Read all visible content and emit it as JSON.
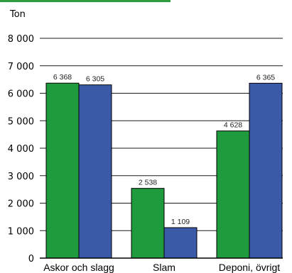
{
  "chart_data": {
    "type": "bar",
    "ylabel": "Ton",
    "ylim": [
      0,
      8000
    ],
    "yticks": [
      0,
      1000,
      2000,
      3000,
      4000,
      5000,
      6000,
      7000,
      8000
    ],
    "ytick_labels": [
      "0",
      "1 000",
      "2 000",
      "3 000",
      "4 000",
      "5 000",
      "6 000",
      "7 000",
      "8 000"
    ],
    "categories": [
      "Askor och slagg",
      "Slam",
      "Deponi, övrigt"
    ],
    "series": [
      {
        "color": "#1f9a3c",
        "values": [
          6368,
          2538,
          4628
        ],
        "labels": [
          "6 368",
          "2 538",
          "4 628"
        ]
      },
      {
        "color": "#3a5aa8",
        "values": [
          6305,
          1109,
          6365
        ],
        "labels": [
          "6 305",
          "1 109",
          "6 365"
        ]
      }
    ],
    "grid": true
  }
}
